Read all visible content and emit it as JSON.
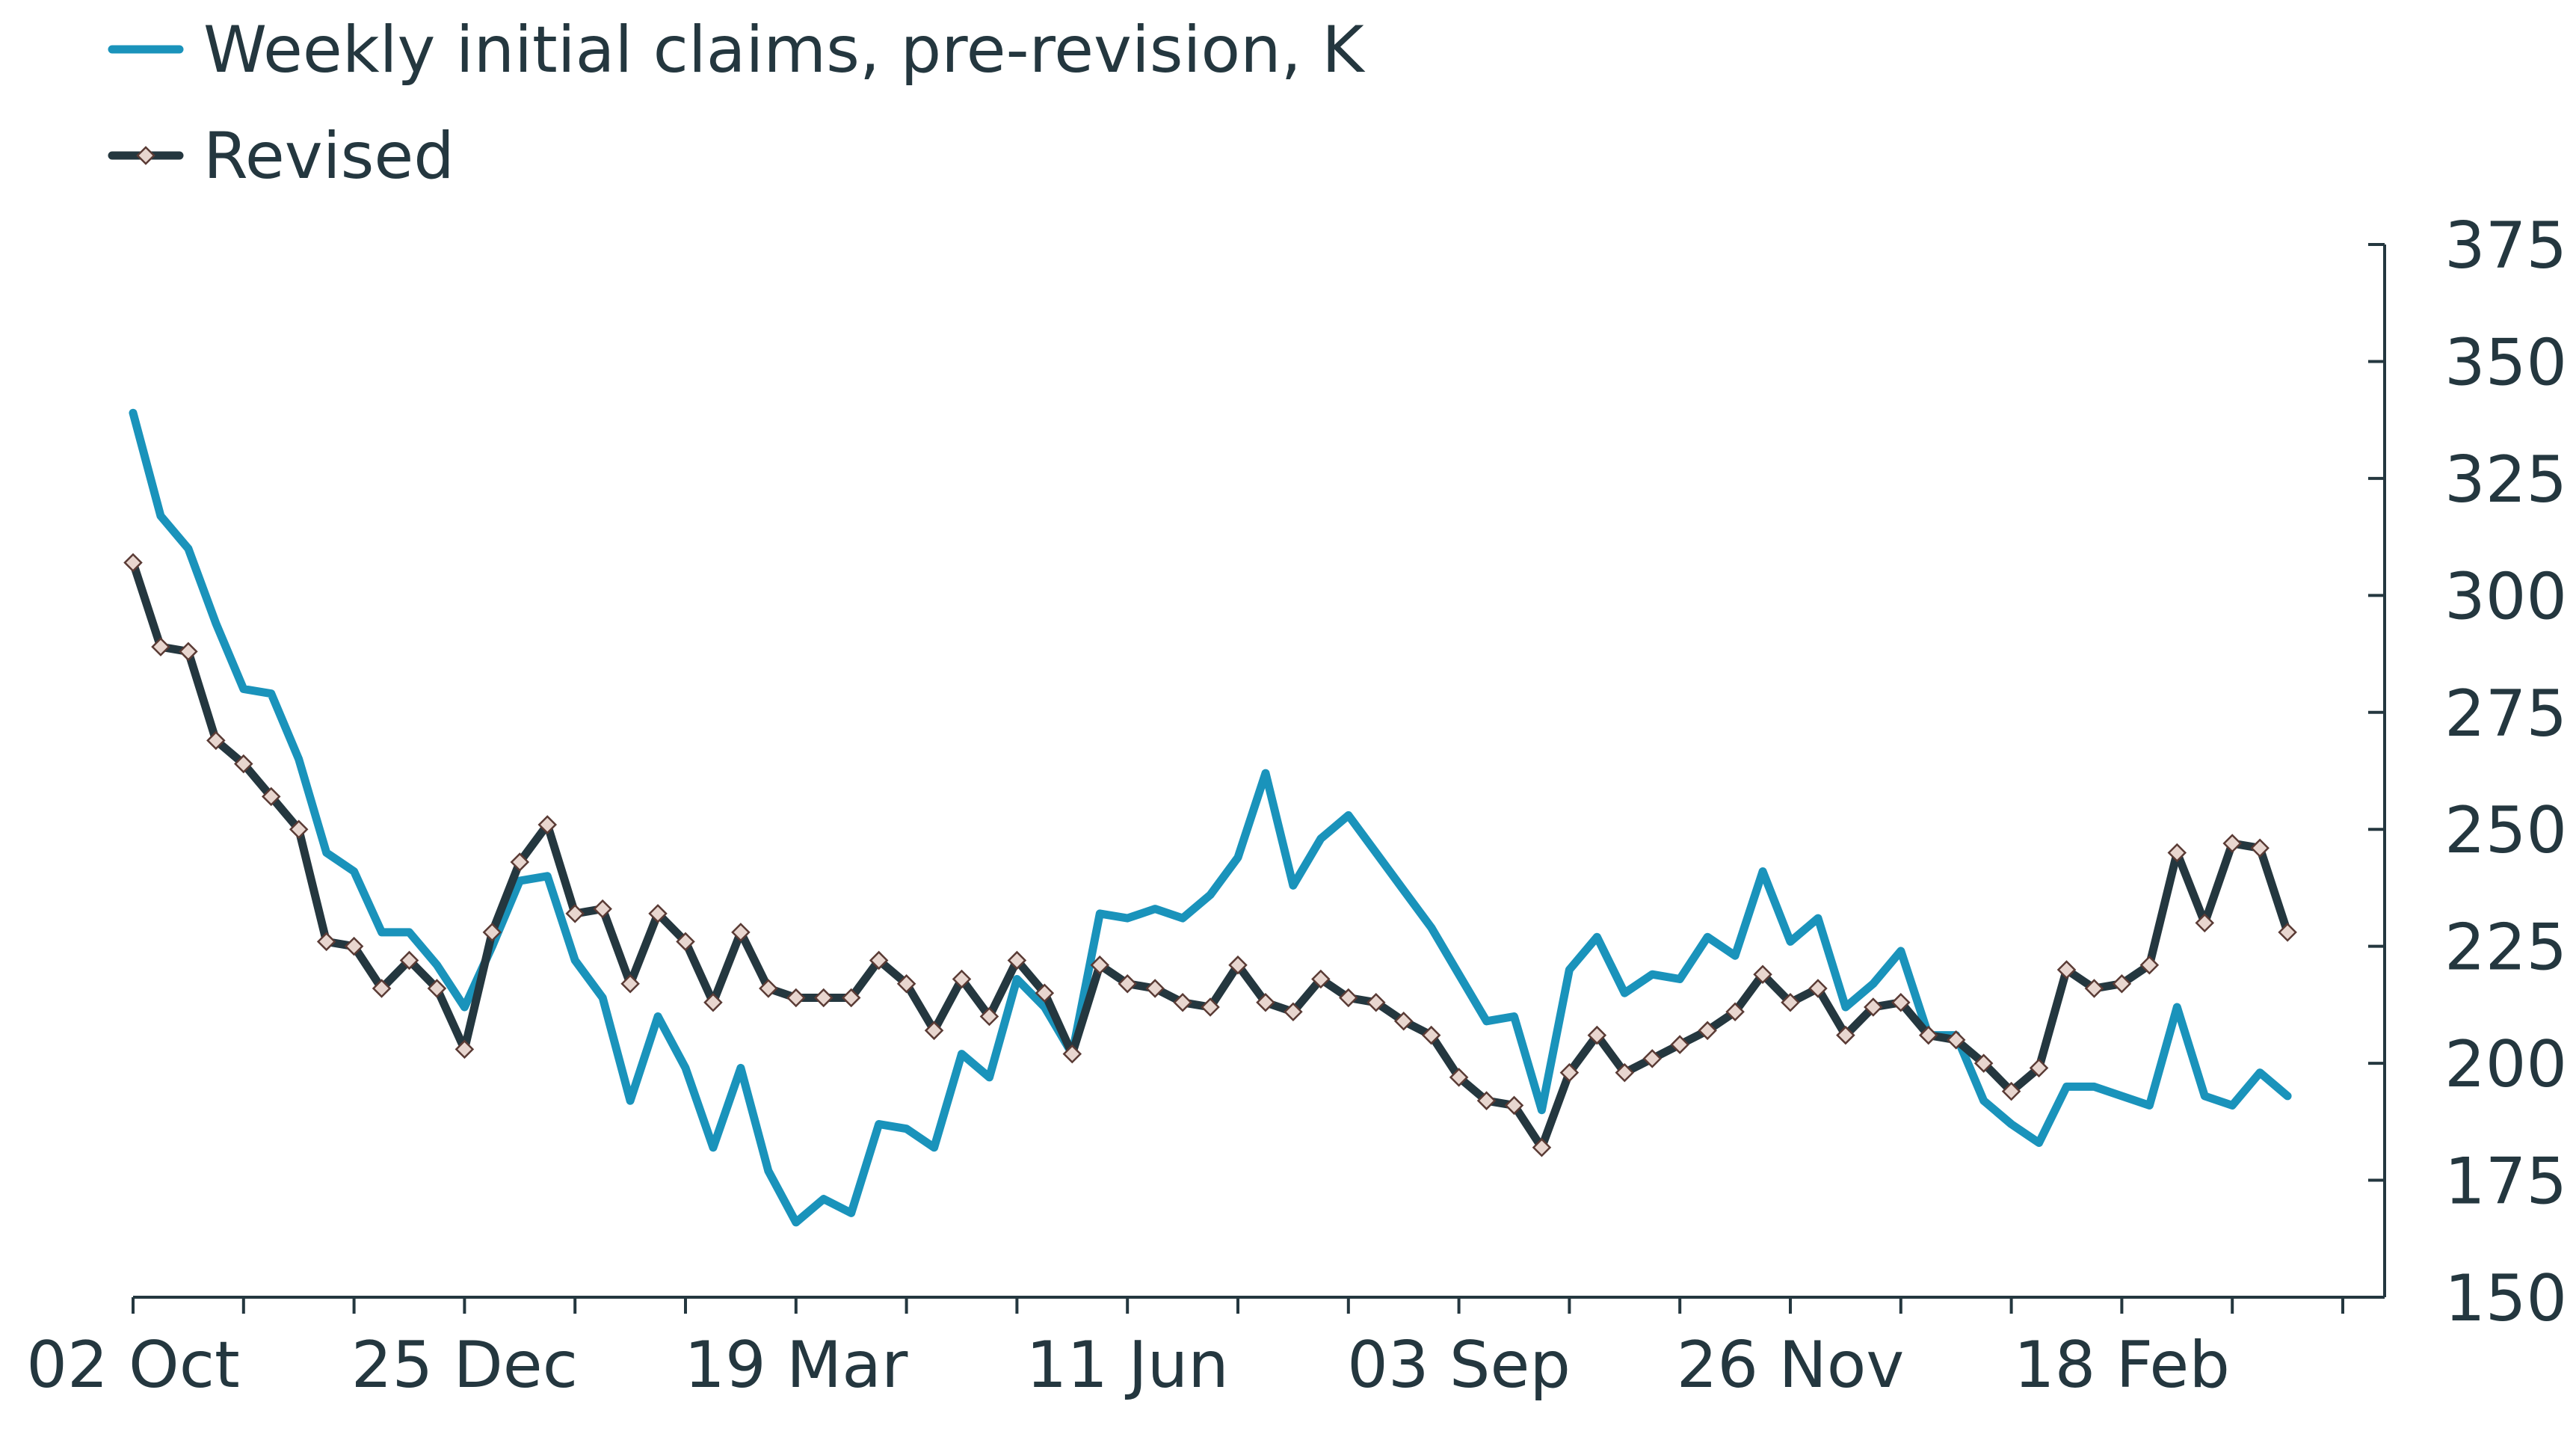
{
  "chart_data": {
    "type": "line",
    "title": "",
    "xlabel": "",
    "ylabel": "",
    "ylim": [
      150,
      375
    ],
    "y_ticks": [
      150,
      175,
      200,
      225,
      250,
      275,
      300,
      325,
      350,
      375
    ],
    "y_axis_side": "right",
    "x_tick_labels": [
      "02 Oct",
      "25 Dec",
      "19 Mar",
      "11 Jun",
      "03 Sep",
      "26 Nov",
      "18 Feb"
    ],
    "x_tick_week_index": [
      0,
      12,
      24,
      36,
      48,
      60,
      72
    ],
    "x_minor_tick_every_weeks": 4,
    "x_range_weeks": [
      0,
      82
    ],
    "legend_position": "top-left",
    "series": [
      {
        "name": "Weekly initial claims, pre-revision, K",
        "color": "#1a93bb",
        "marker": "none",
        "values": [
          339,
          317,
          310,
          294,
          280,
          279,
          265,
          245,
          241,
          228,
          228,
          221,
          212,
          225,
          239,
          240,
          222,
          214,
          192,
          210,
          199,
          182,
          199,
          177,
          166,
          171,
          168,
          187,
          186,
          182,
          202,
          197,
          218,
          212,
          202,
          232,
          231,
          233,
          231,
          236,
          244,
          262,
          238,
          248,
          253,
          245,
          237,
          229,
          219,
          209,
          210,
          190,
          220,
          227,
          215,
          219,
          218,
          227,
          223,
          241,
          226,
          231,
          212,
          217,
          224,
          206,
          206,
          192,
          187,
          183,
          195,
          195,
          193,
          191,
          212,
          193,
          191,
          198,
          193
        ]
      },
      {
        "name": "Revised",
        "color": "#24373f",
        "marker": "diamond",
        "values": [
          307,
          289,
          288,
          269,
          264,
          257,
          250,
          226,
          225,
          216,
          222,
          216,
          203,
          228,
          243,
          251,
          232,
          233,
          217,
          232,
          226,
          213,
          228,
          216,
          214,
          214,
          214,
          222,
          217,
          207,
          218,
          210,
          222,
          215,
          202,
          221,
          217,
          216,
          213,
          212,
          221,
          213,
          211,
          218,
          214,
          213,
          209,
          206,
          197,
          192,
          191,
          182,
          198,
          206,
          198,
          201,
          204,
          207,
          211,
          219,
          213,
          216,
          206,
          212,
          213,
          206,
          205,
          200,
          194,
          199,
          220,
          216,
          217,
          221,
          245,
          230,
          247,
          246,
          228
        ]
      }
    ]
  }
}
